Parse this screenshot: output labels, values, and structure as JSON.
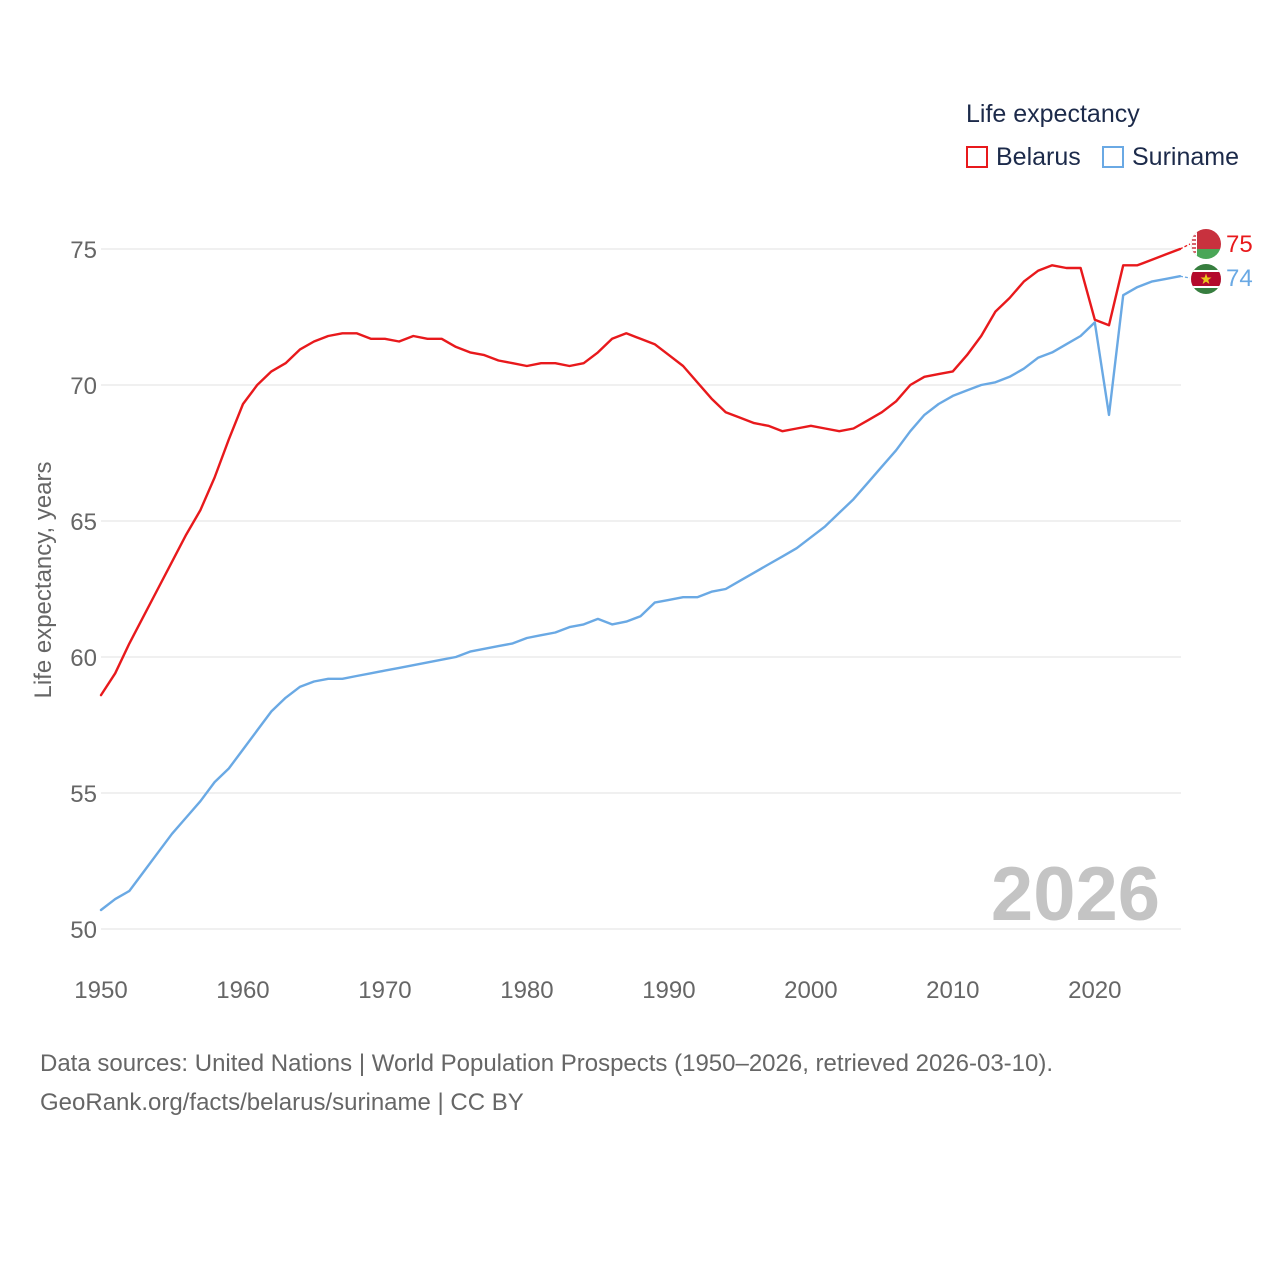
{
  "legend": {
    "title": "Life expectancy",
    "items": [
      {
        "name": "Belarus",
        "color": "#e8191c"
      },
      {
        "name": "Suriname",
        "color": "#6aa9e4"
      }
    ]
  },
  "year_label": "2026",
  "sources": {
    "line1": "Data sources: United Nations | World Population Prospects (1950–2026, retrieved 2026-03-10).",
    "line2": "GeoRank.org/facts/belarus/suriname | CC BY"
  },
  "chart_data": {
    "type": "line",
    "title": "Life expectancy",
    "xlabel": "",
    "ylabel": "Life expectancy, years",
    "xlim": [
      1950,
      2026
    ],
    "ylim": [
      50,
      76.5
    ],
    "x_ticks": [
      1950,
      1960,
      1970,
      1980,
      1990,
      2000,
      2010,
      2020
    ],
    "y_ticks": [
      50,
      55,
      60,
      65,
      70,
      75
    ],
    "grid": true,
    "legend_position": "top-right",
    "end_labels": [
      {
        "series": "Belarus",
        "label": "75"
      },
      {
        "series": "Suriname",
        "label": "74"
      }
    ],
    "series": [
      {
        "name": "Belarus",
        "color": "#e8191c",
        "x": [
          1950,
          1951,
          1952,
          1953,
          1954,
          1955,
          1956,
          1957,
          1958,
          1959,
          1960,
          1961,
          1962,
          1963,
          1964,
          1965,
          1966,
          1967,
          1968,
          1969,
          1970,
          1971,
          1972,
          1973,
          1974,
          1975,
          1976,
          1977,
          1978,
          1979,
          1980,
          1981,
          1982,
          1983,
          1984,
          1985,
          1986,
          1987,
          1988,
          1989,
          1990,
          1991,
          1992,
          1993,
          1994,
          1995,
          1996,
          1997,
          1998,
          1999,
          2000,
          2001,
          2002,
          2003,
          2004,
          2005,
          2006,
          2007,
          2008,
          2009,
          2010,
          2011,
          2012,
          2013,
          2014,
          2015,
          2016,
          2017,
          2018,
          2019,
          2020,
          2021,
          2022,
          2023,
          2024,
          2025,
          2026
        ],
        "values": [
          58.6,
          59.4,
          60.5,
          61.5,
          62.5,
          63.5,
          64.5,
          65.4,
          66.6,
          68.0,
          69.3,
          70.0,
          70.5,
          70.8,
          71.3,
          71.6,
          71.8,
          71.9,
          71.9,
          71.7,
          71.7,
          71.6,
          71.8,
          71.7,
          71.7,
          71.4,
          71.2,
          71.1,
          70.9,
          70.8,
          70.7,
          70.8,
          70.8,
          70.7,
          70.8,
          71.2,
          71.7,
          71.9,
          71.7,
          71.5,
          71.1,
          70.7,
          70.1,
          69.5,
          69.0,
          68.8,
          68.6,
          68.5,
          68.3,
          68.4,
          68.5,
          68.4,
          68.3,
          68.4,
          68.7,
          69.0,
          69.4,
          70.0,
          70.3,
          70.4,
          70.5,
          71.1,
          71.8,
          72.7,
          73.2,
          73.8,
          74.2,
          74.4,
          74.3,
          74.3,
          72.4,
          72.2,
          74.4,
          74.4,
          74.6,
          74.8,
          75.0
        ]
      },
      {
        "name": "Suriname",
        "color": "#6aa9e4",
        "x": [
          1950,
          1951,
          1952,
          1953,
          1954,
          1955,
          1956,
          1957,
          1958,
          1959,
          1960,
          1961,
          1962,
          1963,
          1964,
          1965,
          1966,
          1967,
          1968,
          1969,
          1970,
          1971,
          1972,
          1973,
          1974,
          1975,
          1976,
          1977,
          1978,
          1979,
          1980,
          1981,
          1982,
          1983,
          1984,
          1985,
          1986,
          1987,
          1988,
          1989,
          1990,
          1991,
          1992,
          1993,
          1994,
          1995,
          1996,
          1997,
          1998,
          1999,
          2000,
          2001,
          2002,
          2003,
          2004,
          2005,
          2006,
          2007,
          2008,
          2009,
          2010,
          2011,
          2012,
          2013,
          2014,
          2015,
          2016,
          2017,
          2018,
          2019,
          2020,
          2021,
          2022,
          2023,
          2024,
          2025,
          2026
        ],
        "values": [
          50.7,
          51.1,
          51.4,
          52.1,
          52.8,
          53.5,
          54.1,
          54.7,
          55.4,
          55.9,
          56.6,
          57.3,
          58.0,
          58.5,
          58.9,
          59.1,
          59.2,
          59.2,
          59.3,
          59.4,
          59.5,
          59.6,
          59.7,
          59.8,
          59.9,
          60.0,
          60.2,
          60.3,
          60.4,
          60.5,
          60.7,
          60.8,
          60.9,
          61.1,
          61.2,
          61.4,
          61.2,
          61.3,
          61.5,
          62.0,
          62.1,
          62.2,
          62.2,
          62.4,
          62.5,
          62.8,
          63.1,
          63.4,
          63.7,
          64.0,
          64.4,
          64.8,
          65.3,
          65.8,
          66.4,
          67.0,
          67.6,
          68.3,
          68.9,
          69.3,
          69.6,
          69.8,
          70.0,
          70.1,
          70.3,
          70.6,
          71.0,
          71.2,
          71.5,
          71.8,
          72.3,
          68.9,
          73.3,
          73.6,
          73.8,
          73.9,
          74.0
        ]
      }
    ]
  }
}
